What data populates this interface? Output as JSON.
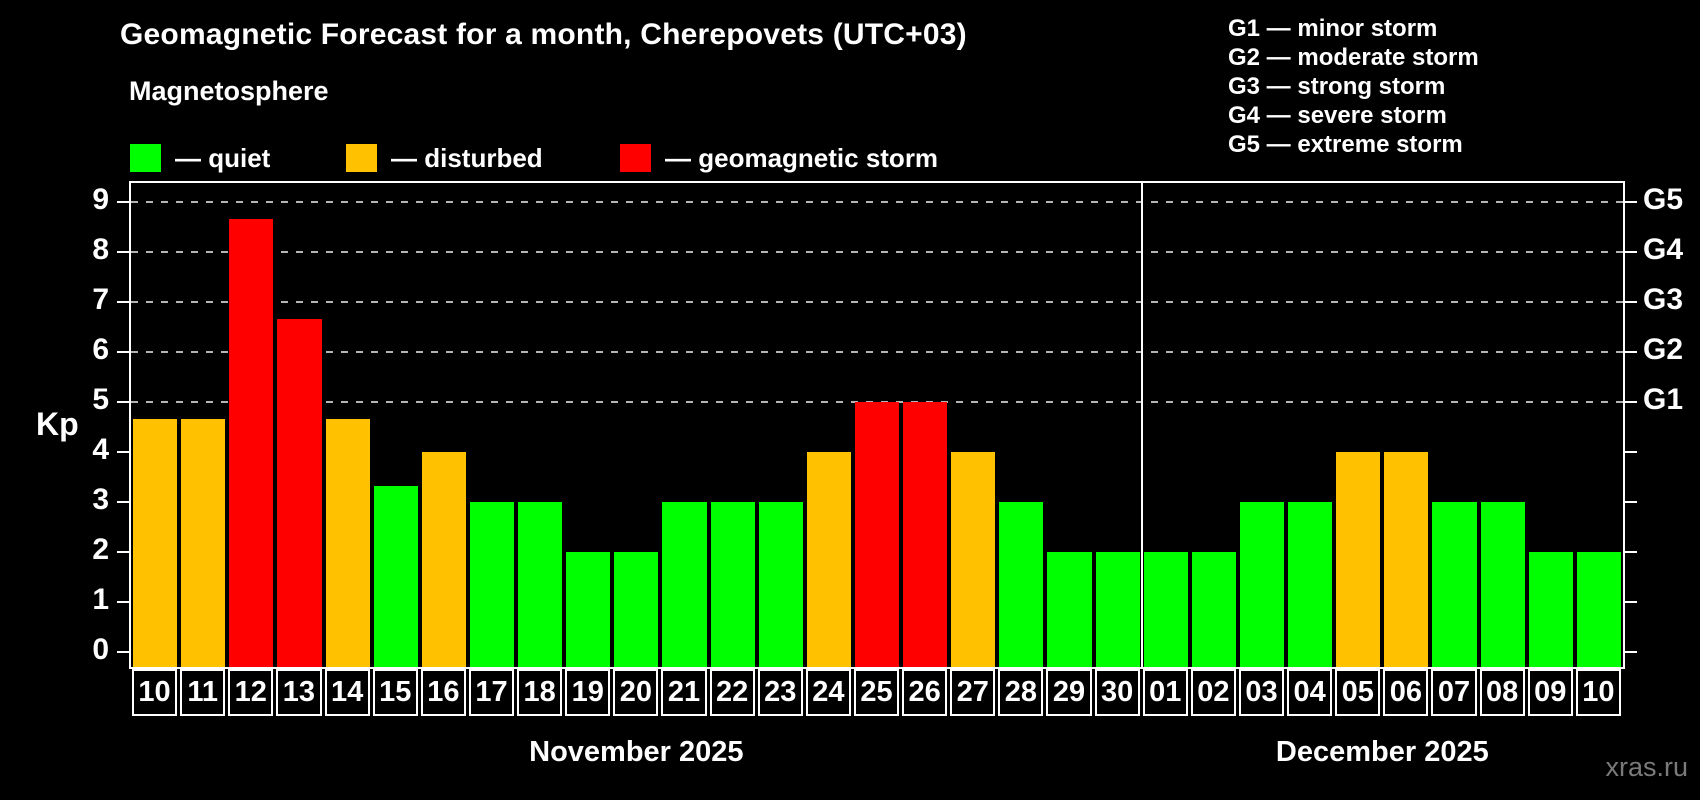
{
  "header": {
    "title": "Geomagnetic Forecast for a month, Cherepovets (UTC+03)",
    "subtitle": "Magnetosphere"
  },
  "series_legend": [
    {
      "name": "quiet",
      "label": "— quiet",
      "color": "#00ff00"
    },
    {
      "name": "disturbed",
      "label": "— disturbed",
      "color": "#ffc100"
    },
    {
      "name": "storm",
      "label": "— geomagnetic storm",
      "color": "#ff0000"
    }
  ],
  "g_legend": [
    "G1 — minor storm",
    "G2 — moderate storm",
    "G3 — strong storm",
    "G4 — severe storm",
    "G5 — extreme storm"
  ],
  "watermark": "xras.ru",
  "chart_data": {
    "type": "bar",
    "title": "Geomagnetic Forecast for a month, Cherepovets (UTC+03)",
    "ylabel": "Kp",
    "ylim": [
      0,
      9
    ],
    "yticks": [
      0,
      1,
      2,
      3,
      4,
      5,
      6,
      7,
      8,
      9
    ],
    "grid_levels": [
      5,
      6,
      7,
      8,
      9
    ],
    "grid_style": "dashed",
    "legend_position": "top",
    "g_labels": {
      "5": "G1",
      "6": "G2",
      "7": "G3",
      "8": "G4",
      "9": "G5"
    },
    "categories": [
      "10",
      "11",
      "12",
      "13",
      "14",
      "15",
      "16",
      "17",
      "18",
      "19",
      "20",
      "21",
      "22",
      "23",
      "24",
      "25",
      "26",
      "27",
      "28",
      "29",
      "30",
      "01",
      "02",
      "03",
      "04",
      "05",
      "06",
      "07",
      "08",
      "09",
      "10"
    ],
    "values": [
      4.67,
      4.67,
      8.67,
      6.67,
      4.67,
      3.33,
      4,
      3,
      3,
      2,
      2,
      3,
      3,
      3,
      4,
      5,
      5,
      4,
      3,
      2,
      2,
      2,
      2,
      3,
      3,
      4,
      4,
      3,
      3,
      2,
      2
    ],
    "statuses": [
      "disturbed",
      "disturbed",
      "storm",
      "storm",
      "disturbed",
      "quiet",
      "disturbed",
      "quiet",
      "quiet",
      "quiet",
      "quiet",
      "quiet",
      "quiet",
      "quiet",
      "disturbed",
      "storm",
      "storm",
      "disturbed",
      "quiet",
      "quiet",
      "quiet",
      "quiet",
      "quiet",
      "quiet",
      "quiet",
      "disturbed",
      "disturbed",
      "quiet",
      "quiet",
      "quiet",
      "quiet"
    ],
    "status_colors": {
      "quiet": "#00ff00",
      "disturbed": "#ffc100",
      "storm": "#ff0000"
    },
    "months": [
      {
        "label": "November 2025",
        "days": 21
      },
      {
        "label": "December 2025",
        "days": 10
      }
    ]
  }
}
